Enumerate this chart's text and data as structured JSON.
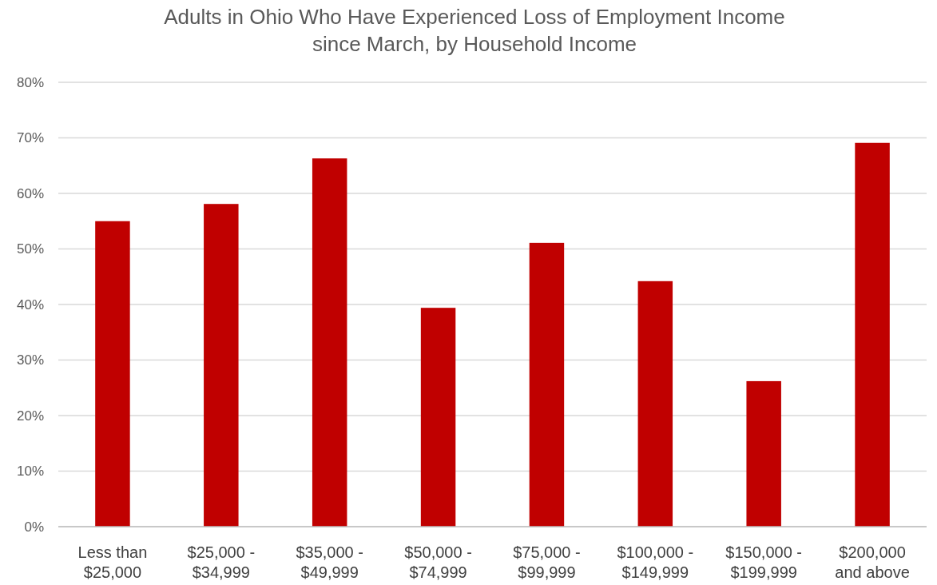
{
  "chart_data": {
    "type": "bar",
    "title": "Adults in Ohio Who Have Experienced Loss of Employment Income\nsince March, by Household Income",
    "categories": [
      "Less than\n$25,000",
      "$25,000 -\n$34,999",
      "$35,000 -\n$49,999",
      "$50,000 -\n$74,999",
      "$75,000 -\n$99,999",
      "$100,000 -\n$149,999",
      "$150,000 -\n$199,999",
      "$200,000\nand above"
    ],
    "values": [
      55.0,
      58.1,
      66.3,
      39.4,
      51.1,
      44.2,
      26.2,
      69.1
    ],
    "color": "#c00000",
    "ylim": [
      0,
      80
    ],
    "yticks": [
      {
        "value": 0,
        "label": "0%"
      },
      {
        "value": 10,
        "label": "10%"
      },
      {
        "value": 20,
        "label": "20%"
      },
      {
        "value": 30,
        "label": "30%"
      },
      {
        "value": 40,
        "label": "40%"
      },
      {
        "value": 50,
        "label": "50%"
      },
      {
        "value": 60,
        "label": "60%"
      },
      {
        "value": 70,
        "label": "70%"
      },
      {
        "value": 80,
        "label": "80%"
      }
    ],
    "grid": true
  }
}
